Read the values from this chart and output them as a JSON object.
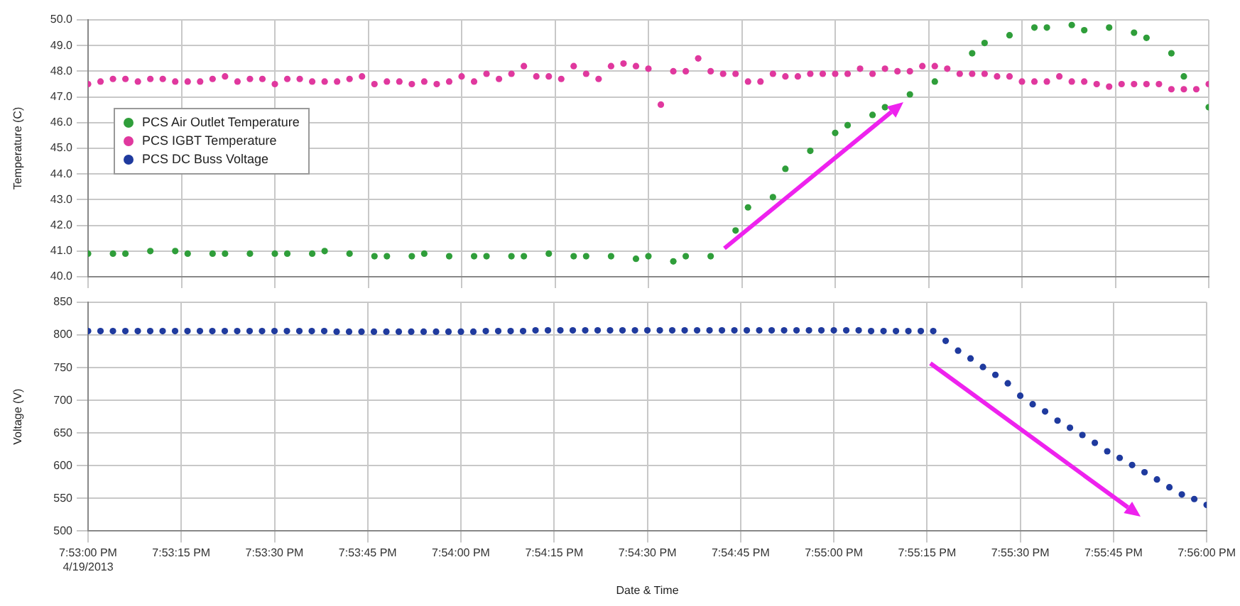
{
  "chart_data": [
    {
      "type": "scatter",
      "ylabel": "Temperature (C)",
      "legend": "top left",
      "grid": true,
      "marker": "circle",
      "tick_labels": "y",
      "xlim": [
        "2013-04-19T19:53:00",
        "2013-04-19T19:56:00"
      ],
      "xticks": [
        {
          "value": "2013-04-19T19:53:00",
          "label": null
        },
        {
          "value": "2013-04-19T19:53:15",
          "label": null
        },
        {
          "value": "2013-04-19T19:53:30",
          "label": null
        },
        {
          "value": "2013-04-19T19:53:45",
          "label": null
        },
        {
          "value": "2013-04-19T19:54:00",
          "label": null
        },
        {
          "value": "2013-04-19T19:54:15",
          "label": null
        },
        {
          "value": "2013-04-19T19:54:30",
          "label": null
        },
        {
          "value": "2013-04-19T19:54:45",
          "label": null
        },
        {
          "value": "2013-04-19T19:55:00",
          "label": null
        },
        {
          "value": "2013-04-19T19:55:15",
          "label": null
        },
        {
          "value": "2013-04-19T19:55:30",
          "label": null
        },
        {
          "value": "2013-04-19T19:55:45",
          "label": null
        },
        {
          "value": "2013-04-19T19:56:00",
          "label": null
        }
      ],
      "ylim": [
        40,
        50
      ],
      "yticks": [
        {
          "value": 40,
          "label": "40.0"
        },
        {
          "value": 41,
          "label": "41.0"
        },
        {
          "value": 42,
          "label": "42.0"
        },
        {
          "value": 43,
          "label": "43.0"
        },
        {
          "value": 44,
          "label": "44.0"
        },
        {
          "value": 45,
          "label": "45.0"
        },
        {
          "value": 46,
          "label": "46.0"
        },
        {
          "value": 47,
          "label": "47.0"
        },
        {
          "value": 48,
          "label": "48.0"
        },
        {
          "value": 49,
          "label": "49.0"
        },
        {
          "value": 50,
          "label": "50.0"
        }
      ],
      "series": [
        {
          "name": "PCS Air Outlet Temperature",
          "color": "#2f9e3a",
          "x": [
            "2013-04-19T19:53:00",
            "2013-04-19T19:53:04",
            "2013-04-19T19:53:06",
            "2013-04-19T19:53:10",
            "2013-04-19T19:53:14",
            "2013-04-19T19:53:16",
            "2013-04-19T19:53:20",
            "2013-04-19T19:53:22",
            "2013-04-19T19:53:26",
            "2013-04-19T19:53:30",
            "2013-04-19T19:53:32",
            "2013-04-19T19:53:36",
            "2013-04-19T19:53:38",
            "2013-04-19T19:53:42",
            "2013-04-19T19:53:46",
            "2013-04-19T19:53:48",
            "2013-04-19T19:53:52",
            "2013-04-19T19:53:54",
            "2013-04-19T19:53:58",
            "2013-04-19T19:54:02",
            "2013-04-19T19:54:04",
            "2013-04-19T19:54:08",
            "2013-04-19T19:54:10",
            "2013-04-19T19:54:14",
            "2013-04-19T19:54:18",
            "2013-04-19T19:54:20",
            "2013-04-19T19:54:24",
            "2013-04-19T19:54:28",
            "2013-04-19T19:54:30",
            "2013-04-19T19:54:34",
            "2013-04-19T19:54:36",
            "2013-04-19T19:54:40",
            "2013-04-19T19:54:44",
            "2013-04-19T19:54:46",
            "2013-04-19T19:54:50",
            "2013-04-19T19:54:52",
            "2013-04-19T19:54:56",
            "2013-04-19T19:55:00",
            "2013-04-19T19:55:02",
            "2013-04-19T19:55:06",
            "2013-04-19T19:55:08",
            "2013-04-19T19:55:12",
            "2013-04-19T19:55:16",
            "2013-04-19T19:55:22",
            "2013-04-19T19:55:24",
            "2013-04-19T19:55:28",
            "2013-04-19T19:55:32",
            "2013-04-19T19:55:34",
            "2013-04-19T19:55:38",
            "2013-04-19T19:55:40",
            "2013-04-19T19:55:44",
            "2013-04-19T19:55:48",
            "2013-04-19T19:55:50",
            "2013-04-19T19:55:54",
            "2013-04-19T19:55:56",
            "2013-04-19T19:56:00"
          ],
          "values": [
            40.9,
            40.9,
            40.9,
            41.0,
            41.0,
            40.9,
            40.9,
            40.9,
            40.9,
            40.9,
            40.9,
            40.9,
            41.0,
            40.9,
            40.8,
            40.8,
            40.8,
            40.9,
            40.8,
            40.8,
            40.8,
            40.8,
            40.8,
            40.9,
            40.8,
            40.8,
            40.8,
            40.7,
            40.8,
            40.6,
            40.8,
            40.8,
            41.8,
            42.7,
            43.1,
            44.2,
            44.9,
            45.6,
            45.9,
            46.3,
            46.6,
            47.1,
            47.6,
            48.7,
            49.1,
            49.4,
            49.7,
            49.7,
            49.8,
            49.6,
            49.7,
            49.5,
            49.3,
            48.7,
            47.8,
            46.6
          ]
        },
        {
          "name": "PCS IGBT Temperature",
          "color": "#e0389e",
          "x": [
            "2013-04-19T19:53:00",
            "2013-04-19T19:53:02",
            "2013-04-19T19:53:04",
            "2013-04-19T19:53:06",
            "2013-04-19T19:53:08",
            "2013-04-19T19:53:10",
            "2013-04-19T19:53:12",
            "2013-04-19T19:53:14",
            "2013-04-19T19:53:16",
            "2013-04-19T19:53:18",
            "2013-04-19T19:53:20",
            "2013-04-19T19:53:22",
            "2013-04-19T19:53:24",
            "2013-04-19T19:53:26",
            "2013-04-19T19:53:28",
            "2013-04-19T19:53:30",
            "2013-04-19T19:53:32",
            "2013-04-19T19:53:34",
            "2013-04-19T19:53:36",
            "2013-04-19T19:53:38",
            "2013-04-19T19:53:40",
            "2013-04-19T19:53:42",
            "2013-04-19T19:53:44",
            "2013-04-19T19:53:46",
            "2013-04-19T19:53:48",
            "2013-04-19T19:53:50",
            "2013-04-19T19:53:52",
            "2013-04-19T19:53:54",
            "2013-04-19T19:53:56",
            "2013-04-19T19:53:58",
            "2013-04-19T19:54:00",
            "2013-04-19T19:54:02",
            "2013-04-19T19:54:04",
            "2013-04-19T19:54:06",
            "2013-04-19T19:54:08",
            "2013-04-19T19:54:10",
            "2013-04-19T19:54:12",
            "2013-04-19T19:54:14",
            "2013-04-19T19:54:16",
            "2013-04-19T19:54:18",
            "2013-04-19T19:54:20",
            "2013-04-19T19:54:22",
            "2013-04-19T19:54:24",
            "2013-04-19T19:54:26",
            "2013-04-19T19:54:28",
            "2013-04-19T19:54:30",
            "2013-04-19T19:54:32",
            "2013-04-19T19:54:34",
            "2013-04-19T19:54:36",
            "2013-04-19T19:54:38",
            "2013-04-19T19:54:40",
            "2013-04-19T19:54:42",
            "2013-04-19T19:54:44",
            "2013-04-19T19:54:46",
            "2013-04-19T19:54:48",
            "2013-04-19T19:54:50",
            "2013-04-19T19:54:52",
            "2013-04-19T19:54:54",
            "2013-04-19T19:54:56",
            "2013-04-19T19:54:58",
            "2013-04-19T19:55:00",
            "2013-04-19T19:55:02",
            "2013-04-19T19:55:04",
            "2013-04-19T19:55:06",
            "2013-04-19T19:55:08",
            "2013-04-19T19:55:10",
            "2013-04-19T19:55:12",
            "2013-04-19T19:55:14",
            "2013-04-19T19:55:16",
            "2013-04-19T19:55:18",
            "2013-04-19T19:55:20",
            "2013-04-19T19:55:22",
            "2013-04-19T19:55:24",
            "2013-04-19T19:55:26",
            "2013-04-19T19:55:28",
            "2013-04-19T19:55:30",
            "2013-04-19T19:55:32",
            "2013-04-19T19:55:34",
            "2013-04-19T19:55:36",
            "2013-04-19T19:55:38",
            "2013-04-19T19:55:40",
            "2013-04-19T19:55:42",
            "2013-04-19T19:55:44",
            "2013-04-19T19:55:46",
            "2013-04-19T19:55:48",
            "2013-04-19T19:55:50",
            "2013-04-19T19:55:52",
            "2013-04-19T19:55:54",
            "2013-04-19T19:55:56",
            "2013-04-19T19:55:58",
            "2013-04-19T19:56:00"
          ],
          "values": [
            47.5,
            47.6,
            47.7,
            47.7,
            47.6,
            47.7,
            47.7,
            47.6,
            47.6,
            47.6,
            47.7,
            47.8,
            47.6,
            47.7,
            47.7,
            47.5,
            47.7,
            47.7,
            47.6,
            47.6,
            47.6,
            47.7,
            47.8,
            47.5,
            47.6,
            47.6,
            47.5,
            47.6,
            47.5,
            47.6,
            47.8,
            47.6,
            47.9,
            47.7,
            47.9,
            48.2,
            47.8,
            47.8,
            47.7,
            48.2,
            47.9,
            47.7,
            48.2,
            48.3,
            48.2,
            48.1,
            46.7,
            48.0,
            48.0,
            48.5,
            48.0,
            47.9,
            47.9,
            47.6,
            47.6,
            47.9,
            47.8,
            47.8,
            47.9,
            47.9,
            47.9,
            47.9,
            48.1,
            47.9,
            48.1,
            48.0,
            48.0,
            48.2,
            48.2,
            48.1,
            47.9,
            47.9,
            47.9,
            47.8,
            47.8,
            47.6,
            47.6,
            47.6,
            47.8,
            47.6,
            47.6,
            47.5,
            47.4,
            47.5,
            47.5,
            47.5,
            47.5,
            47.3,
            47.3,
            47.3,
            47.5
          ]
        }
      ]
    },
    {
      "type": "scatter",
      "xlabel": "Date & Time",
      "ylabel": "Voltage (V)",
      "grid": true,
      "marker": "circle",
      "xlim": [
        "2013-04-19T19:53:00",
        "2013-04-19T19:56:00"
      ],
      "xticks": [
        {
          "value": "2013-04-19T19:53:00",
          "label": "7:53:00 PM\n4/19/2013"
        },
        {
          "value": "2013-04-19T19:53:15",
          "label": "7:53:15 PM"
        },
        {
          "value": "2013-04-19T19:53:30",
          "label": "7:53:30 PM"
        },
        {
          "value": "2013-04-19T19:53:45",
          "label": "7:53:45 PM"
        },
        {
          "value": "2013-04-19T19:54:00",
          "label": "7:54:00 PM"
        },
        {
          "value": "2013-04-19T19:54:15",
          "label": "7:54:15 PM"
        },
        {
          "value": "2013-04-19T19:54:30",
          "label": "7:54:30 PM"
        },
        {
          "value": "2013-04-19T19:54:45",
          "label": "7:54:45 PM"
        },
        {
          "value": "2013-04-19T19:55:00",
          "label": "7:55:00 PM"
        },
        {
          "value": "2013-04-19T19:55:15",
          "label": "7:55:15 PM"
        },
        {
          "value": "2013-04-19T19:55:30",
          "label": "7:55:30 PM"
        },
        {
          "value": "2013-04-19T19:55:45",
          "label": "7:55:45 PM"
        },
        {
          "value": "2013-04-19T19:56:00",
          "label": "7:56:00 PM"
        }
      ],
      "ylim": [
        500,
        850
      ],
      "yticks": [
        500,
        550,
        600,
        650,
        700,
        750,
        800,
        850
      ],
      "x": [
        "2013-04-19T19:53:00",
        "2013-04-19T19:53:02",
        "2013-04-19T19:53:04",
        "2013-04-19T19:53:06",
        "2013-04-19T19:53:08",
        "2013-04-19T19:53:10",
        "2013-04-19T19:53:12",
        "2013-04-19T19:53:14",
        "2013-04-19T19:53:16",
        "2013-04-19T19:53:18",
        "2013-04-19T19:53:20",
        "2013-04-19T19:53:22",
        "2013-04-19T19:53:24",
        "2013-04-19T19:53:26",
        "2013-04-19T19:53:28",
        "2013-04-19T19:53:30",
        "2013-04-19T19:53:32",
        "2013-04-19T19:53:34",
        "2013-04-19T19:53:36",
        "2013-04-19T19:53:38",
        "2013-04-19T19:53:40",
        "2013-04-19T19:53:42",
        "2013-04-19T19:53:44",
        "2013-04-19T19:53:46",
        "2013-04-19T19:53:48",
        "2013-04-19T19:53:50",
        "2013-04-19T19:53:52",
        "2013-04-19T19:53:54",
        "2013-04-19T19:53:56",
        "2013-04-19T19:53:58",
        "2013-04-19T19:54:00",
        "2013-04-19T19:54:02",
        "2013-04-19T19:54:04",
        "2013-04-19T19:54:06",
        "2013-04-19T19:54:08",
        "2013-04-19T19:54:10",
        "2013-04-19T19:54:12",
        "2013-04-19T19:54:14",
        "2013-04-19T19:54:16",
        "2013-04-19T19:54:18",
        "2013-04-19T19:54:20",
        "2013-04-19T19:54:22",
        "2013-04-19T19:54:24",
        "2013-04-19T19:54:26",
        "2013-04-19T19:54:28",
        "2013-04-19T19:54:30",
        "2013-04-19T19:54:32",
        "2013-04-19T19:54:34",
        "2013-04-19T19:54:36",
        "2013-04-19T19:54:38",
        "2013-04-19T19:54:40",
        "2013-04-19T19:54:42",
        "2013-04-19T19:54:44",
        "2013-04-19T19:54:46",
        "2013-04-19T19:54:48",
        "2013-04-19T19:54:50",
        "2013-04-19T19:54:52",
        "2013-04-19T19:54:54",
        "2013-04-19T19:54:56",
        "2013-04-19T19:54:58",
        "2013-04-19T19:55:00",
        "2013-04-19T19:55:02",
        "2013-04-19T19:55:04",
        "2013-04-19T19:55:06",
        "2013-04-19T19:55:08",
        "2013-04-19T19:55:10",
        "2013-04-19T19:55:12",
        "2013-04-19T19:55:14",
        "2013-04-19T19:55:16",
        "2013-04-19T19:55:18",
        "2013-04-19T19:55:20",
        "2013-04-19T19:55:22",
        "2013-04-19T19:55:24",
        "2013-04-19T19:55:26",
        "2013-04-19T19:55:28",
        "2013-04-19T19:55:30",
        "2013-04-19T19:55:32",
        "2013-04-19T19:55:34",
        "2013-04-19T19:55:36",
        "2013-04-19T19:55:38",
        "2013-04-19T19:55:40",
        "2013-04-19T19:55:42",
        "2013-04-19T19:55:44",
        "2013-04-19T19:55:46",
        "2013-04-19T19:55:48",
        "2013-04-19T19:55:50",
        "2013-04-19T19:55:52",
        "2013-04-19T19:55:54",
        "2013-04-19T19:55:56",
        "2013-04-19T19:55:58",
        "2013-04-19T19:56:00"
      ],
      "series": [
        {
          "name": "PCS DC Buss Voltage",
          "color": "#1f3a9e",
          "values": [
            806,
            806,
            806,
            806,
            806,
            806,
            806,
            806,
            806,
            806,
            806,
            806,
            806,
            806,
            806,
            806,
            806,
            806,
            806,
            806,
            805,
            805,
            805,
            805,
            805,
            805,
            805,
            805,
            805,
            805,
            805,
            805,
            806,
            806,
            806,
            806,
            807,
            807,
            807,
            807,
            807,
            807,
            807,
            807,
            807,
            807,
            807,
            807,
            807,
            807,
            807,
            807,
            807,
            807,
            807,
            807,
            807,
            807,
            807,
            807,
            807,
            807,
            807,
            806,
            806,
            806,
            806,
            806,
            806,
            791,
            776,
            764,
            751,
            739,
            726,
            707,
            694,
            683,
            669,
            658,
            647,
            635,
            622,
            612,
            601,
            590,
            579,
            567,
            556,
            549,
            540
          ]
        }
      ]
    }
  ]
}
